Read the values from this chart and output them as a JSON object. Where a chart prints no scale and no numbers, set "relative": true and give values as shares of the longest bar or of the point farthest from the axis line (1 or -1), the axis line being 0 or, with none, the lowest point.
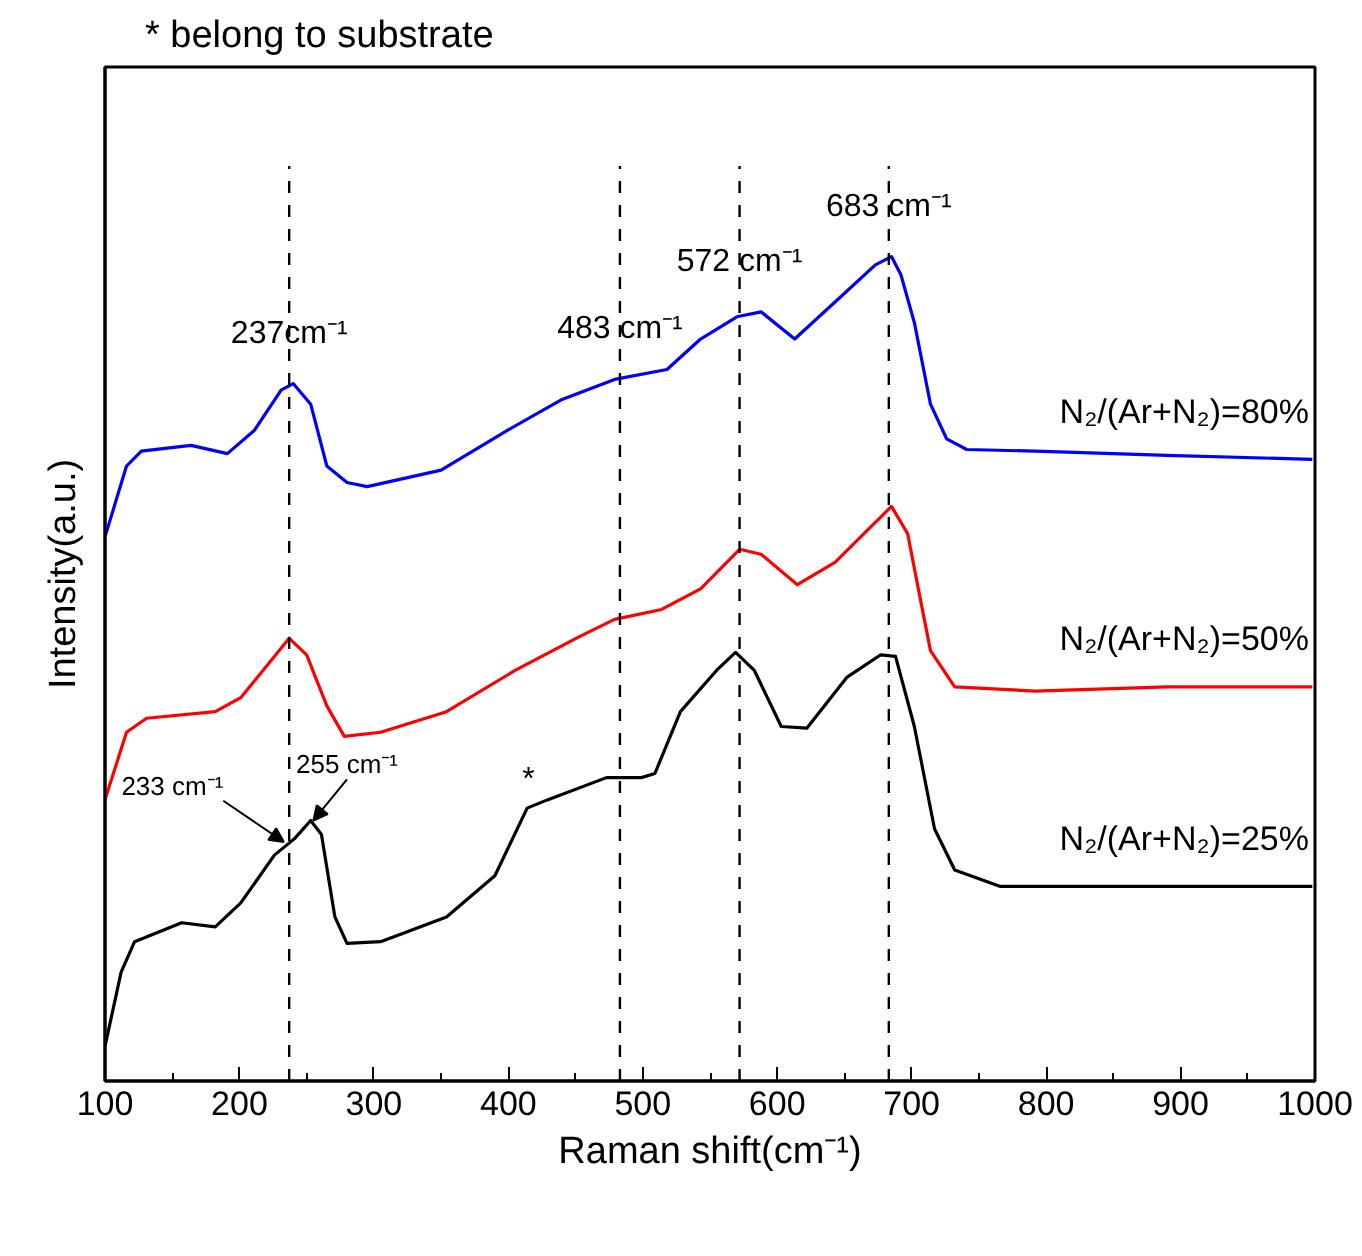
{
  "chart_data": {
    "type": "line",
    "relative": true,
    "xlabel": "Raman shift(cm⁻¹)",
    "ylabel": "Intensity(a.u.)",
    "xlim": [
      100,
      1000
    ],
    "xticks": [
      100,
      200,
      300,
      400,
      500,
      600,
      700,
      800,
      900,
      1000
    ],
    "grid": false,
    "legend": false,
    "marker": "none",
    "line_style": "solid",
    "series": [
      {
        "name": "N₂/(Ar+N₂)=80%",
        "color": "#0000ff",
        "x": [
          100,
          116,
          127,
          164,
          191,
          211,
          231,
          240,
          253,
          265,
          280,
          295,
          350,
          399,
          439,
          479,
          518,
          543,
          570,
          588,
          613,
          643,
          673,
          685,
          692,
          702,
          714,
          726,
          741,
          792,
          890,
          998
        ],
        "values": [
          0.66,
          0.746,
          0.764,
          0.771,
          0.761,
          0.789,
          0.838,
          0.846,
          0.821,
          0.746,
          0.726,
          0.721,
          0.741,
          0.789,
          0.826,
          0.851,
          0.863,
          0.9,
          0.927,
          0.933,
          0.9,
          0.945,
          0.99,
          1,
          0.978,
          0.92,
          0.821,
          0.779,
          0.766,
          0.764,
          0.759,
          0.754
        ]
      },
      {
        "name": "N₂/(Ar+N₂)=50%",
        "color": "#ff0000",
        "x": [
          100,
          116,
          131,
          182,
          201,
          226,
          237,
          250,
          265,
          278,
          305,
          354,
          405,
          454,
          479,
          514,
          543,
          572,
          588,
          615,
          643,
          685,
          697,
          707,
          714,
          732,
          792,
          890,
          998
        ],
        "values": [
          0.341,
          0.423,
          0.44,
          0.448,
          0.465,
          0.515,
          0.537,
          0.517,
          0.455,
          0.418,
          0.423,
          0.448,
          0.498,
          0.54,
          0.56,
          0.572,
          0.597,
          0.645,
          0.639,
          0.602,
          0.629,
          0.697,
          0.664,
          0.58,
          0.522,
          0.478,
          0.473,
          0.478,
          0.478
        ]
      },
      {
        "name": "N₂/(Ar+N₂)=25%",
        "color": "#000000",
        "x": [
          100,
          112,
          122,
          157,
          182,
          201,
          226,
          241,
          253,
          261,
          271,
          280,
          305,
          354,
          390,
          414,
          429,
          473,
          499,
          509,
          528,
          556,
          569,
          583,
          603,
          622,
          652,
          677,
          688,
          702,
          717,
          732,
          766,
          890,
          998
        ],
        "values": [
          0.042,
          0.132,
          0.169,
          0.192,
          0.187,
          0.216,
          0.274,
          0.294,
          0.316,
          0.299,
          0.199,
          0.167,
          0.169,
          0.199,
          0.249,
          0.331,
          0.341,
          0.368,
          0.368,
          0.373,
          0.448,
          0.5,
          0.52,
          0.498,
          0.43,
          0.428,
          0.49,
          0.517,
          0.515,
          0.43,
          0.306,
          0.256,
          0.236,
          0.236,
          0.236
        ]
      }
    ],
    "ref_lines": [
      {
        "axis": "x",
        "value": 237,
        "label": "237cm⁻¹",
        "line_style": "dashed",
        "color": "#000000"
      },
      {
        "axis": "x",
        "value": 483,
        "label": "483 cm⁻¹",
        "line_style": "dashed",
        "color": "#000000"
      },
      {
        "axis": "x",
        "value": 572,
        "label": "572 cm⁻¹",
        "line_style": "dashed",
        "color": "#000000"
      },
      {
        "axis": "x",
        "value": 683,
        "label": "683 cm⁻¹",
        "line_style": "dashed",
        "color": "#000000"
      }
    ],
    "annotations": [
      "* belong to substrate",
      {
        "text": "233 cm⁻¹",
        "x": 233,
        "y": 0.29
      },
      {
        "text": "255 cm⁻¹",
        "x": 255,
        "y": 0.316
      },
      {
        "text": "*",
        "x": 415,
        "y": 0.335
      }
    ]
  }
}
